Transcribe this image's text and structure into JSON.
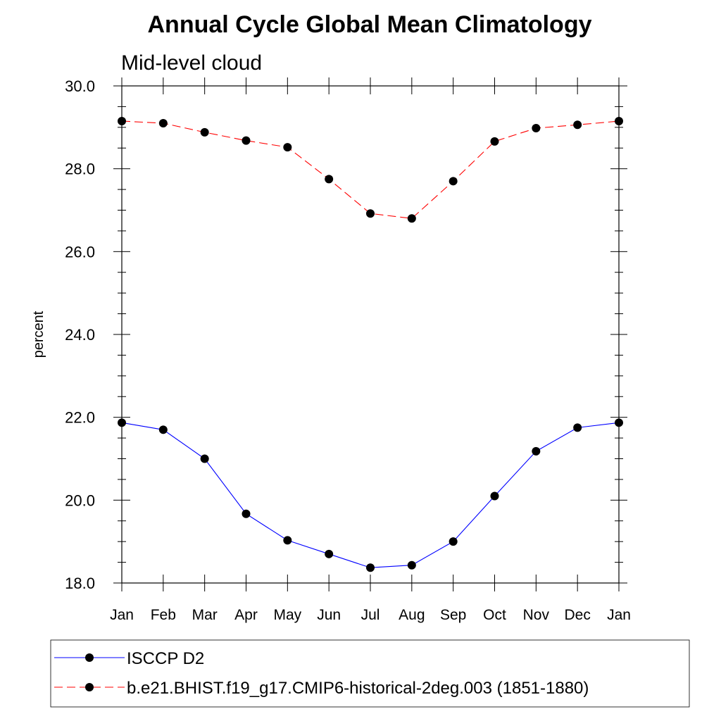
{
  "chart_data": {
    "type": "line",
    "title": "Annual Cycle Global Mean Climatology",
    "subtitle": "Mid-level cloud",
    "xlabel": "",
    "ylabel": "percent",
    "categories": [
      "Jan",
      "Feb",
      "Mar",
      "Apr",
      "May",
      "Jun",
      "Jul",
      "Aug",
      "Sep",
      "Oct",
      "Nov",
      "Dec",
      "Jan"
    ],
    "ylim": [
      18.0,
      30.0
    ],
    "yticks": [
      "18.0",
      "20.0",
      "22.0",
      "24.0",
      "26.0",
      "28.0",
      "30.0"
    ],
    "grid": false,
    "legend_position": "bottom",
    "series": [
      {
        "name": "ISCCP D2",
        "color": "#0000ff",
        "dash": "solid",
        "marker": "circle",
        "values": [
          21.87,
          21.7,
          21.0,
          19.67,
          19.03,
          18.7,
          18.37,
          18.43,
          19.0,
          20.1,
          21.18,
          21.75,
          21.87
        ]
      },
      {
        "name": "b.e21.BHIST.f19_g17.CMIP6-historical-2deg.003 (1851-1880)",
        "color": "#ff0000",
        "dash": "dashed",
        "marker": "circle",
        "values": [
          29.15,
          29.1,
          28.88,
          28.68,
          28.52,
          27.75,
          26.92,
          26.8,
          27.7,
          28.66,
          28.98,
          29.06,
          29.15
        ]
      }
    ]
  }
}
